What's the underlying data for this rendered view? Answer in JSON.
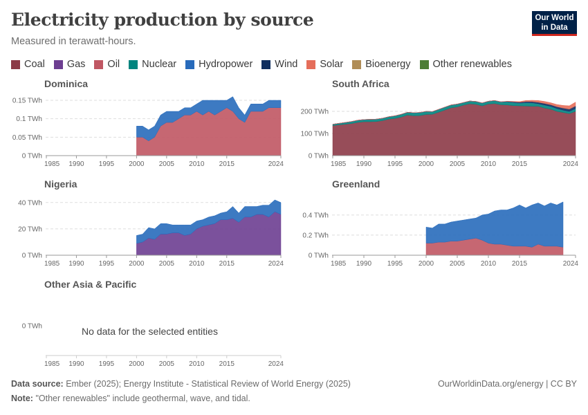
{
  "header": {
    "title": "Electricity production by source",
    "subtitle": "Measured in terawatt-hours.",
    "logo_line1": "Our World",
    "logo_line2": "in Data"
  },
  "legend": [
    {
      "name": "Coal",
      "color": "#8c3a47"
    },
    {
      "name": "Gas",
      "color": "#6d3e91"
    },
    {
      "name": "Oil",
      "color": "#c05763"
    },
    {
      "name": "Nuclear",
      "color": "#00847e"
    },
    {
      "name": "Hydropower",
      "color": "#286bbb"
    },
    {
      "name": "Wind",
      "color": "#0f2e5e"
    },
    {
      "name": "Solar",
      "color": "#e56e5a"
    },
    {
      "name": "Bioenergy",
      "color": "#b08d57"
    },
    {
      "name": "Other renewables",
      "color": "#4c7d35"
    }
  ],
  "footer": {
    "source_label": "Data source:",
    "source_text": "Ember (2025); Energy Institute - Statistical Review of World Energy (2025)",
    "note_label": "Note:",
    "note_text": "\"Other renewables\" include geothermal, wave, and tidal.",
    "right_text": "OurWorldinData.org/energy | CC BY"
  },
  "chart_data": [
    {
      "type": "area",
      "title": "Dominica",
      "x_ticks": [
        "1985",
        "1990",
        "1995",
        "2000",
        "2005",
        "2010",
        "2015",
        "2024"
      ],
      "xlim": [
        1985,
        2024
      ],
      "y_ticks": [
        "0 TWh",
        "0.05 TWh",
        "0.1 TWh",
        "0.15 TWh"
      ],
      "ylim": [
        0,
        0.15
      ],
      "x": [
        2000,
        2001,
        2002,
        2003,
        2004,
        2005,
        2006,
        2007,
        2008,
        2009,
        2010,
        2011,
        2012,
        2013,
        2014,
        2015,
        2016,
        2017,
        2018,
        2019,
        2020,
        2021,
        2022,
        2023,
        2024
      ],
      "series": [
        {
          "name": "Oil",
          "values": [
            0.05,
            0.05,
            0.04,
            0.05,
            0.08,
            0.09,
            0.09,
            0.1,
            0.11,
            0.11,
            0.12,
            0.11,
            0.12,
            0.11,
            0.12,
            0.13,
            0.12,
            0.1,
            0.09,
            0.12,
            0.12,
            0.12,
            0.13,
            0.13,
            0.13
          ]
        },
        {
          "name": "Hydropower",
          "values": [
            0.03,
            0.03,
            0.03,
            0.03,
            0.03,
            0.03,
            0.03,
            0.02,
            0.02,
            0.02,
            0.02,
            0.04,
            0.03,
            0.04,
            0.03,
            0.02,
            0.04,
            0.03,
            0.02,
            0.02,
            0.02,
            0.02,
            0.02,
            0.02,
            0.02
          ]
        }
      ]
    },
    {
      "type": "area",
      "title": "South Africa",
      "x_ticks": [
        "1985",
        "1990",
        "1995",
        "2000",
        "2005",
        "2010",
        "2015",
        "2024"
      ],
      "xlim": [
        1985,
        2024
      ],
      "y_ticks": [
        "0 TWh",
        "100 TWh",
        "200 TWh"
      ],
      "ylim": [
        0,
        250
      ],
      "x": [
        1985,
        1986,
        1987,
        1988,
        1989,
        1990,
        1991,
        1992,
        1993,
        1994,
        1995,
        1996,
        1997,
        1998,
        1999,
        2000,
        2001,
        2002,
        2003,
        2004,
        2005,
        2006,
        2007,
        2008,
        2009,
        2010,
        2011,
        2012,
        2013,
        2014,
        2015,
        2016,
        2017,
        2018,
        2019,
        2020,
        2021,
        2022,
        2023,
        2024
      ],
      "series": [
        {
          "name": "Coal",
          "values": [
            136,
            139,
            142,
            145,
            150,
            153,
            153,
            154,
            158,
            165,
            168,
            174,
            183,
            180,
            181,
            186,
            187,
            196,
            206,
            216,
            220,
            228,
            234,
            232,
            225,
            233,
            235,
            230,
            229,
            226,
            225,
            224,
            223,
            223,
            215,
            210,
            200,
            195,
            190,
            200
          ]
        },
        {
          "name": "Nuclear",
          "values": [
            5,
            6,
            7,
            8,
            9,
            9,
            10,
            10,
            10,
            10,
            11,
            12,
            12,
            13,
            13,
            13,
            11,
            12,
            12,
            12,
            12,
            11,
            12,
            12,
            12,
            12,
            13,
            12,
            14,
            14,
            12,
            15,
            15,
            11,
            13,
            12,
            12,
            10,
            9,
            12
          ]
        },
        {
          "name": "Hydropower",
          "values": [
            1,
            1,
            1,
            1,
            1,
            1,
            1,
            1,
            1,
            1,
            1,
            1,
            1,
            1,
            1,
            1,
            1,
            1,
            1,
            1,
            1,
            1,
            1,
            1,
            1,
            1,
            1,
            1,
            1,
            1,
            1,
            1,
            1,
            1,
            1,
            1,
            1,
            1,
            1,
            1
          ]
        },
        {
          "name": "Wind",
          "values": [
            0,
            0,
            0,
            0,
            0,
            0,
            0,
            0,
            0,
            0,
            0,
            0,
            0,
            0,
            0,
            0,
            0,
            0,
            0,
            0,
            0,
            0,
            0,
            0,
            0,
            0,
            0,
            0,
            1,
            2,
            3,
            4,
            5,
            6,
            7,
            7,
            8,
            9,
            10,
            11
          ]
        },
        {
          "name": "Solar",
          "values": [
            0,
            0,
            0,
            0,
            0,
            0,
            0,
            0,
            0,
            0,
            0,
            0,
            0,
            0,
            0,
            0,
            0,
            0,
            0,
            0,
            0,
            0,
            0,
            0,
            0,
            0,
            0,
            0,
            1,
            2,
            3,
            5,
            6,
            8,
            9,
            9,
            10,
            12,
            15,
            18
          ]
        }
      ]
    },
    {
      "type": "area",
      "title": "Nigeria",
      "x_ticks": [
        "1985",
        "1990",
        "1995",
        "2000",
        "2005",
        "2010",
        "2015",
        "2024"
      ],
      "xlim": [
        1985,
        2024
      ],
      "y_ticks": [
        "0 TWh",
        "20 TWh",
        "40 TWh"
      ],
      "ylim": [
        0,
        42
      ],
      "x": [
        2000,
        2001,
        2002,
        2003,
        2004,
        2005,
        2006,
        2007,
        2008,
        2009,
        2010,
        2011,
        2012,
        2013,
        2014,
        2015,
        2016,
        2017,
        2018,
        2019,
        2020,
        2021,
        2022,
        2023,
        2024
      ],
      "series": [
        {
          "name": "Gas",
          "values": [
            9,
            10,
            13,
            12,
            16,
            16,
            17,
            17,
            15,
            16,
            20,
            22,
            23,
            24,
            27,
            27,
            28,
            25,
            29,
            29,
            31,
            31,
            29,
            33,
            31
          ]
        },
        {
          "name": "Hydropower",
          "values": [
            6,
            6,
            8,
            8,
            8,
            8,
            6,
            6,
            8,
            7,
            6,
            5,
            6,
            6,
            5,
            6,
            9,
            7,
            8,
            8,
            6,
            7,
            9,
            9,
            9
          ]
        }
      ]
    },
    {
      "type": "area",
      "title": "Greenland",
      "x_ticks": [
        "1985",
        "1990",
        "1995",
        "2000",
        "2005",
        "2010",
        "2015",
        "2024"
      ],
      "xlim": [
        1985,
        2024
      ],
      "y_ticks": [
        "0 TWh",
        "0.2 TWh",
        "0.4 TWh"
      ],
      "ylim": [
        0,
        0.55
      ],
      "x": [
        2000,
        2001,
        2002,
        2003,
        2004,
        2005,
        2006,
        2007,
        2008,
        2009,
        2010,
        2011,
        2012,
        2013,
        2014,
        2015,
        2016,
        2017,
        2018,
        2019,
        2020,
        2021,
        2022
      ],
      "series": [
        {
          "name": "Oil",
          "values": [
            0.12,
            0.12,
            0.13,
            0.13,
            0.14,
            0.14,
            0.15,
            0.16,
            0.17,
            0.15,
            0.12,
            0.11,
            0.11,
            0.1,
            0.09,
            0.09,
            0.09,
            0.08,
            0.11,
            0.09,
            0.09,
            0.09,
            0.08
          ]
        },
        {
          "name": "Hydropower",
          "values": [
            0.16,
            0.15,
            0.18,
            0.18,
            0.19,
            0.2,
            0.2,
            0.2,
            0.2,
            0.25,
            0.29,
            0.33,
            0.34,
            0.35,
            0.38,
            0.41,
            0.38,
            0.42,
            0.41,
            0.4,
            0.43,
            0.41,
            0.45
          ]
        }
      ]
    },
    {
      "type": "area",
      "title": "Other Asia & Pacific",
      "x_ticks": [
        "1985",
        "1990",
        "1995",
        "2000",
        "2005",
        "2010",
        "2015",
        "2024"
      ],
      "xlim": [
        1985,
        2024
      ],
      "y_ticks": [
        "0 TWh"
      ],
      "ylim": [
        0,
        1
      ],
      "x": [],
      "series": [],
      "annotation": "No data for the selected entities"
    }
  ]
}
